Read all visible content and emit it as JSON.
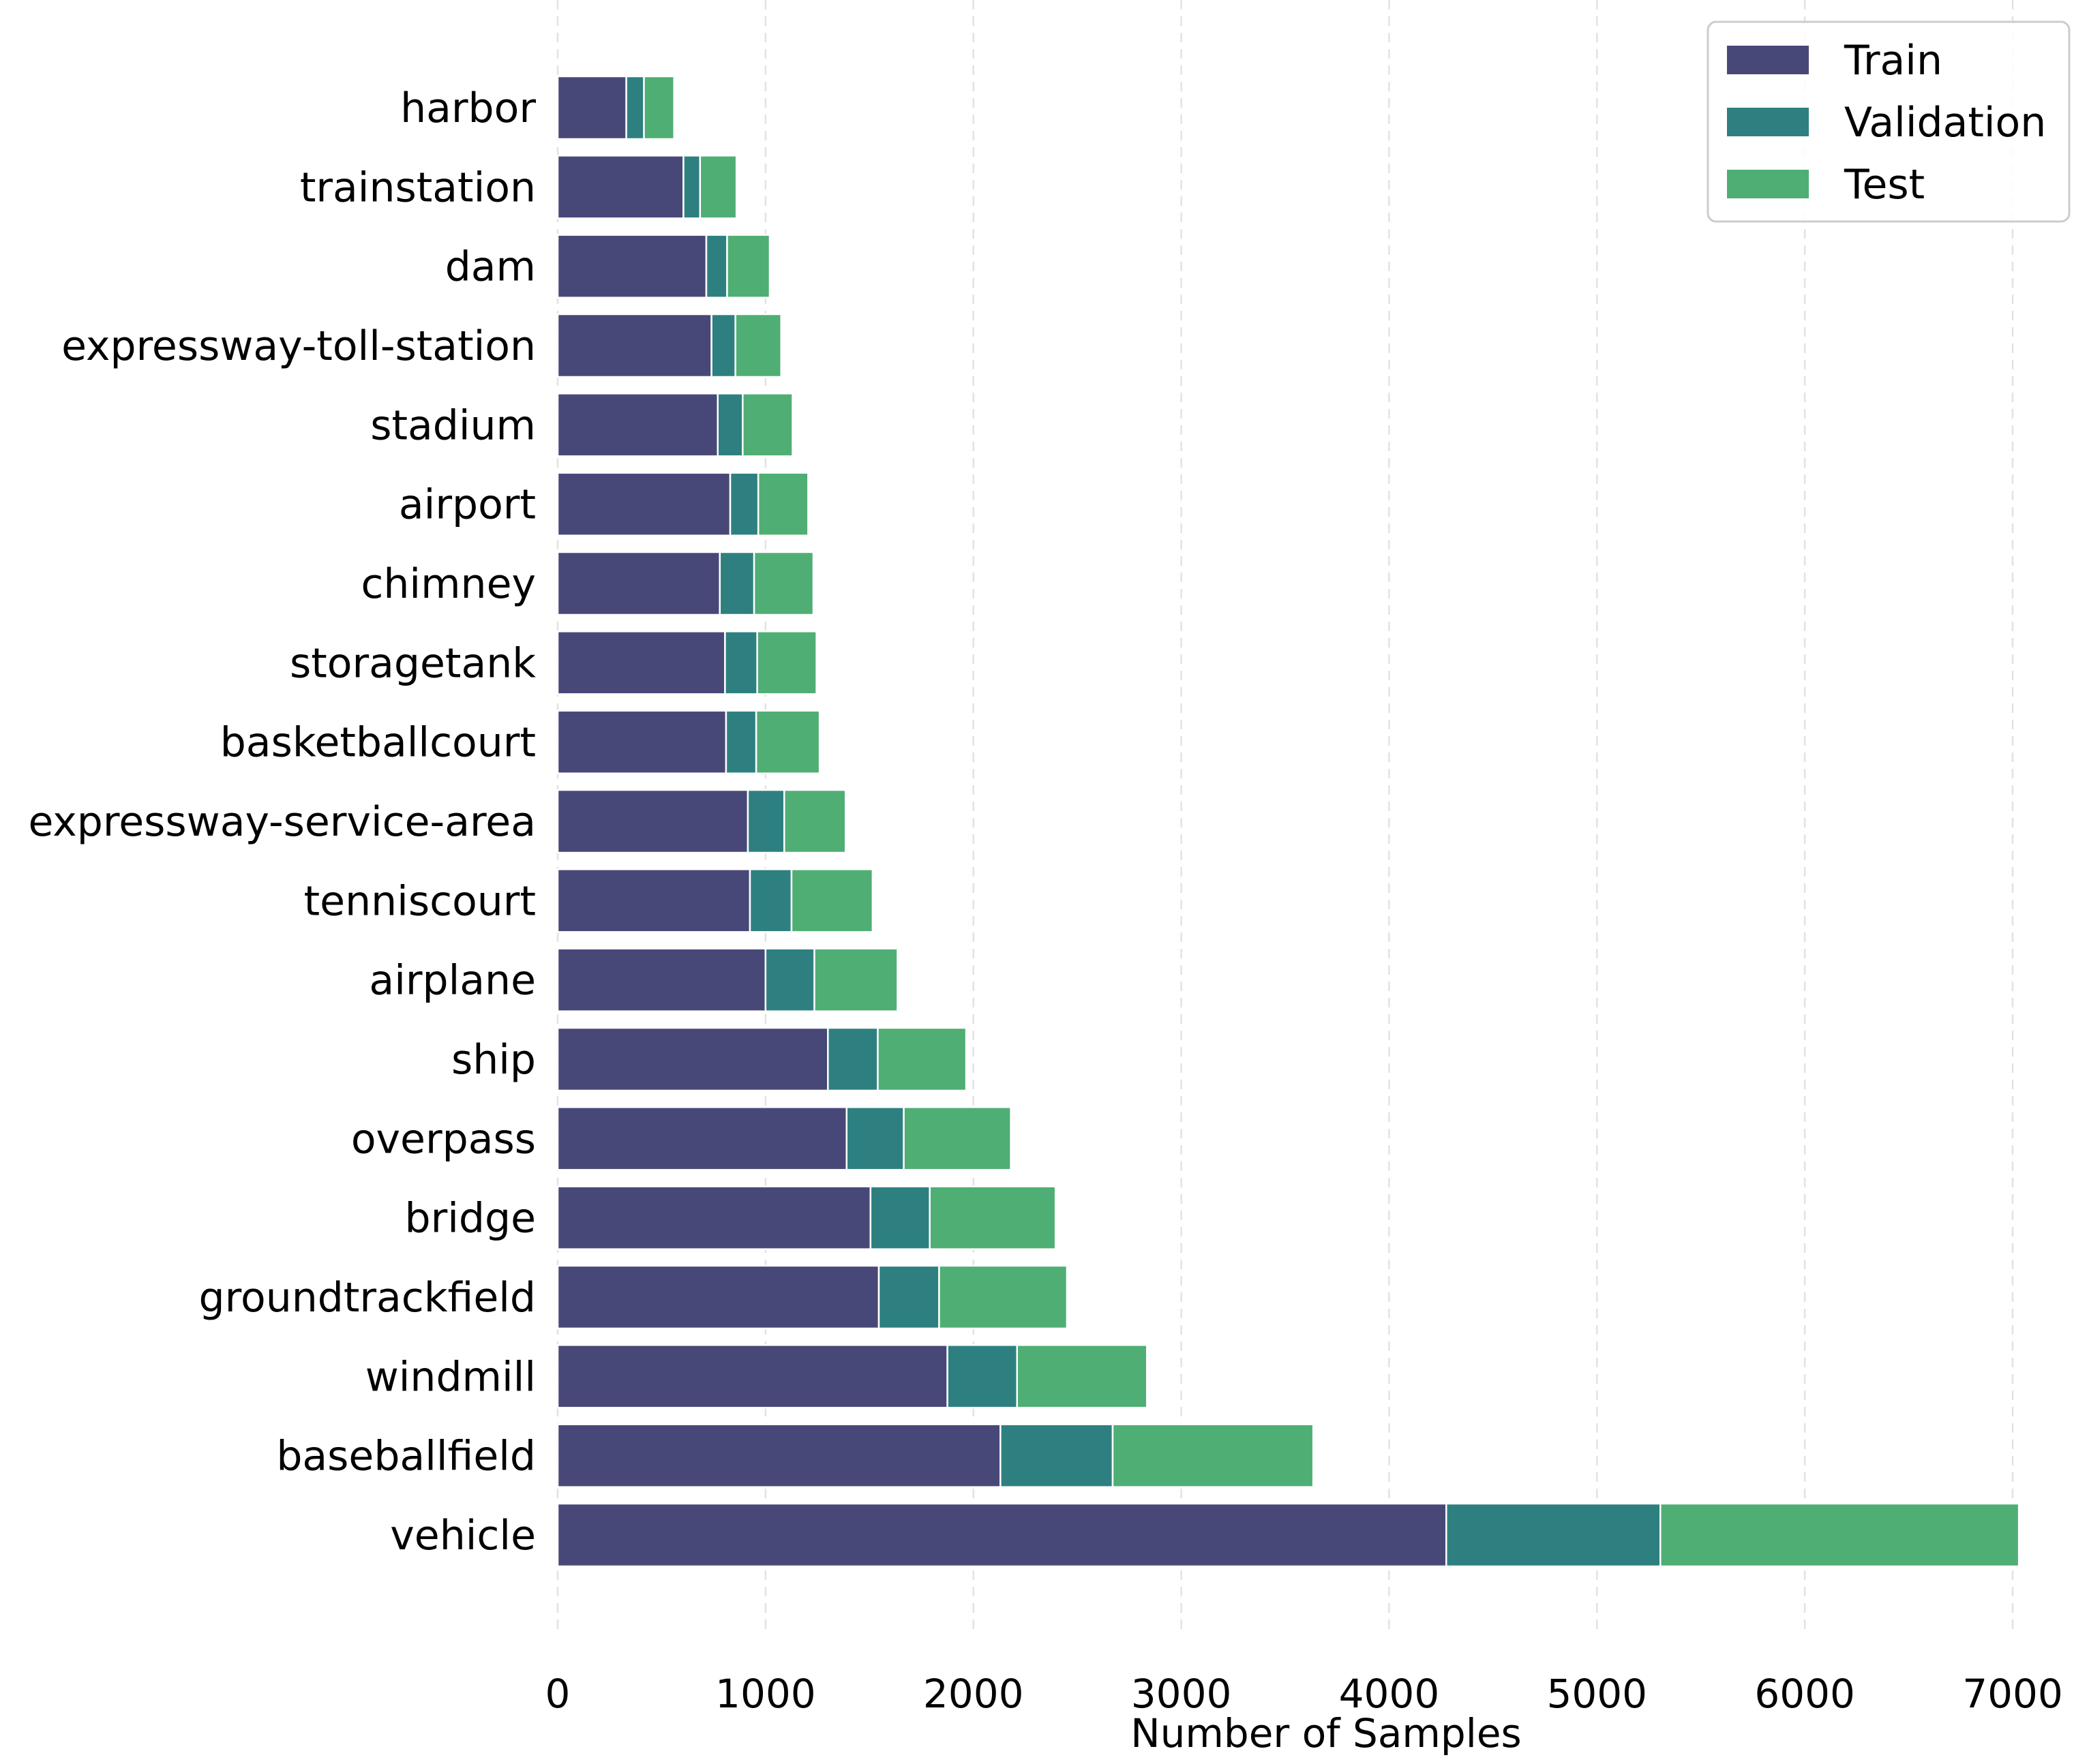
{
  "chart_data": {
    "type": "bar",
    "orientation": "horizontal",
    "stacked": true,
    "categories": [
      "harbor",
      "trainstation",
      "dam",
      "expressway-toll-station",
      "stadium",
      "airport",
      "chimney",
      "storagetank",
      "basketballcourt",
      "expressway-service-area",
      "tenniscourt",
      "airplane",
      "ship",
      "overpass",
      "bridge",
      "groundtrackfield",
      "windmill",
      "baseballfield",
      "vehicle"
    ],
    "series": [
      {
        "name": "Train",
        "color": "#484878",
        "values": [
          330,
          605,
          715,
          740,
          770,
          830,
          780,
          805,
          810,
          915,
          925,
          1000,
          1300,
          1390,
          1505,
          1545,
          1875,
          2130,
          4275
        ]
      },
      {
        "name": "Validation",
        "color": "#2e8080",
        "values": [
          85,
          80,
          100,
          115,
          120,
          135,
          165,
          155,
          145,
          175,
          200,
          235,
          240,
          275,
          285,
          290,
          335,
          540,
          1030
        ]
      },
      {
        "name": "Test",
        "color": "#4fae74",
        "values": [
          145,
          175,
          205,
          220,
          240,
          240,
          285,
          285,
          305,
          295,
          390,
          400,
          425,
          515,
          605,
          615,
          625,
          965,
          1725
        ]
      }
    ],
    "xlabel": "Number of Samples",
    "ylabel": "",
    "xlim": [
      0,
      7250
    ],
    "xticks": [
      0,
      1000,
      2000,
      3000,
      4000,
      5000,
      6000,
      7000
    ],
    "grid": "vertical-dashed",
    "legend_position": "top-right"
  }
}
